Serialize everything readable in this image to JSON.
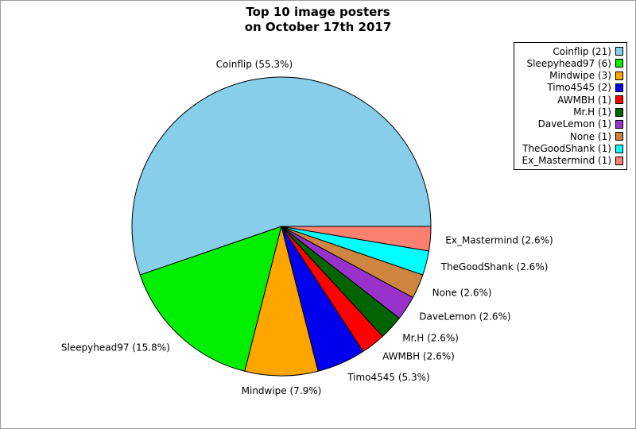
{
  "chart_data": {
    "type": "pie",
    "title": "Top 10 image posters",
    "subtitle": "on October 17th 2017",
    "start_angle_deg": 0,
    "direction": "counterclockwise",
    "legend_position": "upper right",
    "slice_label_format": "{label} ({pct}%)",
    "legend_label_format": "{label} ({count})",
    "total_count": 38,
    "slices": [
      {
        "label": "Coinflip",
        "count": 21,
        "pct": 55.3,
        "color": "#87CEEB"
      },
      {
        "label": "Sleepyhead97",
        "count": 6,
        "pct": 15.8,
        "color": "#00EE00"
      },
      {
        "label": "Mindwipe",
        "count": 3,
        "pct": 7.9,
        "color": "#FFA500"
      },
      {
        "label": "Timo4545",
        "count": 2,
        "pct": 5.3,
        "color": "#0000EE"
      },
      {
        "label": "AWMBH",
        "count": 1,
        "pct": 2.6,
        "color": "#FF0000"
      },
      {
        "label": "Mr.H",
        "count": 1,
        "pct": 2.6,
        "color": "#006400"
      },
      {
        "label": "DaveLemon",
        "count": 1,
        "pct": 2.6,
        "color": "#9932CC"
      },
      {
        "label": "None",
        "count": 1,
        "pct": 2.6,
        "color": "#CD853F"
      },
      {
        "label": "TheGoodShank",
        "count": 1,
        "pct": 2.6,
        "color": "#00FFFF"
      },
      {
        "label": "Ex_Mastermind",
        "count": 1,
        "pct": 2.6,
        "color": "#FA8072"
      }
    ],
    "slice_outline_color": "#000000",
    "figure_border_color": "#9c9c9c",
    "background_color": "#ffffff"
  }
}
